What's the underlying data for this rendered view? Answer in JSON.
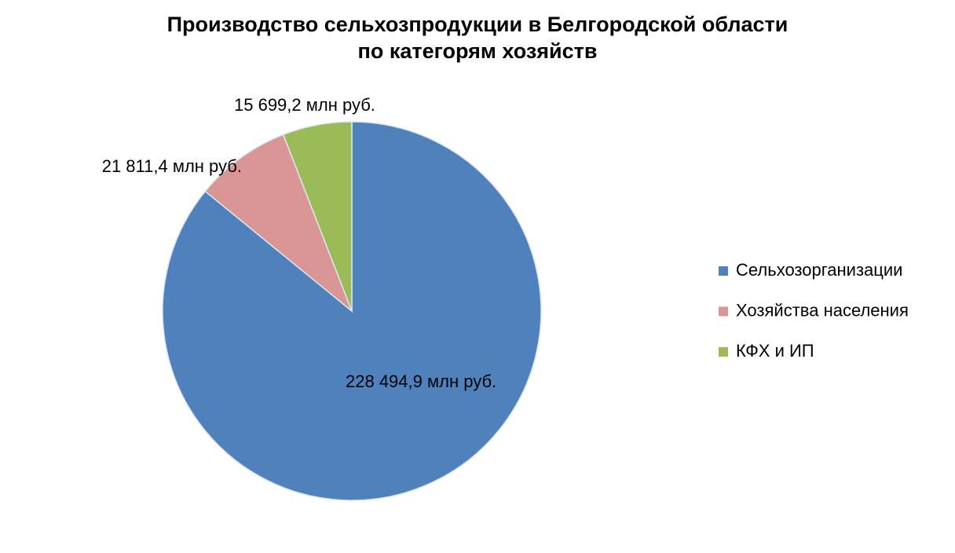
{
  "chart_data": {
    "type": "pie",
    "title": [
      "Производство сельхозпродукции в Белгородской области",
      "по категорям хозяйств"
    ],
    "categories": [
      "Сельхозорганизации",
      "Хозяйства населения",
      "КФХ и ИП"
    ],
    "values": [
      228494.9,
      21811.4,
      15699.2
    ],
    "value_labels": [
      "228 494,9 млн руб.",
      "21 811,4 млн руб.",
      "15 699,2 млн руб."
    ],
    "colors": [
      "#4f81bd",
      "#d99694",
      "#9bbb59"
    ],
    "legend": "right"
  }
}
